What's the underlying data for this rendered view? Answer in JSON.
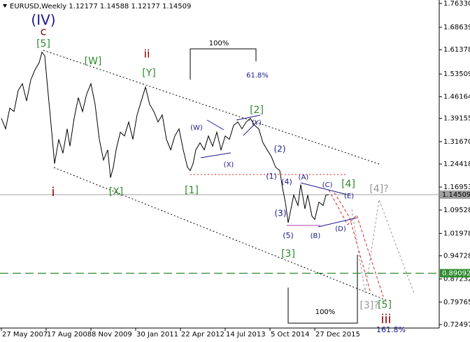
{
  "chart_data": {
    "type": "line",
    "title": "EURUSD,Weekly  1.12177 1.14588 1.12177 1.14509",
    "xlim": [
      -2,
      626
    ],
    "xticks": [
      {
        "value": 0,
        "label": "27 May 2007"
      },
      {
        "value": 64,
        "label": "17 Aug 2008"
      },
      {
        "value": 128,
        "label": "8 Nov 2009"
      },
      {
        "value": 192,
        "label": "30 Jan 2011"
      },
      {
        "value": 256,
        "label": "22 Apr 2012"
      },
      {
        "value": 320,
        "label": "14 Jul 2013"
      },
      {
        "value": 384,
        "label": "5 Oct 2014"
      },
      {
        "value": 448,
        "label": "27 Dec 2015"
      }
    ],
    "ylim": [
      0.7137,
      1.7746
    ],
    "yticks": [
      {
        "value": 1.7633,
        "label": "1.76330"
      },
      1.68639,
      1.61378,
      1.53509,
      1.46164,
      1.39155,
      {
        "value": 1.3167,
        "label": "1.31670"
      },
      1.24418,
      1.16953,
      1.09528,
      1.01978,
      0.94728,
      0.87232,
      0.79765,
      0.72497
    ],
    "hlines": [
      {
        "value": 1.14509,
        "label": "1.14509",
        "color": "#a0a0a0",
        "style": "solid"
      },
      {
        "value": 0.89092,
        "label": "0.89092",
        "color": "#2e8b2e",
        "style": "dashed"
      }
    ],
    "series": [
      {
        "name": "EURUSD",
        "color": "#000000",
        "x": [
          0,
          6,
          12,
          18,
          24,
          30,
          36,
          42,
          48,
          54,
          58,
          62,
          66,
          72,
          76,
          82,
          88,
          94,
          98,
          104,
          110,
          116,
          122,
          128,
          134,
          140,
          146,
          152,
          156,
          160,
          164,
          170,
          176,
          182,
          188,
          194,
          200,
          206,
          212,
          218,
          224,
          230,
          236,
          242,
          248,
          254,
          260,
          266,
          270,
          274,
          278,
          284,
          290,
          296,
          302,
          308,
          314,
          320,
          326,
          332,
          338,
          344,
          350,
          356,
          362,
          368,
          374,
          380,
          386,
          392,
          398,
          402,
          406,
          410,
          414,
          418,
          424,
          428,
          434,
          438,
          444,
          448,
          454,
          460,
          464,
          468
        ],
        "values": [
          1.392,
          1.358,
          1.425,
          1.414,
          1.482,
          1.504,
          1.448,
          1.516,
          1.549,
          1.572,
          1.606,
          1.594,
          1.493,
          1.347,
          1.245,
          1.324,
          1.279,
          1.358,
          1.302,
          1.392,
          1.459,
          1.414,
          1.471,
          1.504,
          1.437,
          1.324,
          1.257,
          1.29,
          1.2,
          1.234,
          1.29,
          1.347,
          1.335,
          1.38,
          1.324,
          1.403,
          1.448,
          1.493,
          1.437,
          1.414,
          1.38,
          1.403,
          1.324,
          1.29,
          1.335,
          1.358,
          1.29,
          1.234,
          1.223,
          1.245,
          1.29,
          1.313,
          1.29,
          1.335,
          1.302,
          1.347,
          1.29,
          1.335,
          1.324,
          1.369,
          1.38,
          1.358,
          1.38,
          1.392,
          1.369,
          1.358,
          1.313,
          1.29,
          1.268,
          1.234,
          1.223,
          1.166,
          1.121,
          1.054,
          1.099,
          1.144,
          1.11,
          1.178,
          1.099,
          1.144,
          1.076,
          1.065,
          1.121,
          1.11,
          1.144,
          1.14509
        ]
      }
    ],
    "annotations": [
      {
        "text": "(IV)",
        "color": "#1a1a8c"
      },
      {
        "text": "c",
        "color": "#8b0000"
      },
      {
        "text": "[5]",
        "color": "#2e8b2e"
      },
      {
        "text": "[W]",
        "color": "#2e8b2e"
      },
      {
        "text": "ii",
        "color": "#8b0000"
      },
      {
        "text": "[Y]",
        "color": "#2e8b2e"
      },
      {
        "text": "100%",
        "color": "#000000"
      },
      {
        "text": "61.8%",
        "color": "#1a1a8c"
      },
      {
        "text": "[2]",
        "color": "#2e8b2e"
      },
      {
        "text": "(Y)",
        "color": "#1a1a8c"
      },
      {
        "text": "(W)",
        "color": "#1a1a8c"
      },
      {
        "text": "(X)",
        "color": "#1a1a8c"
      },
      {
        "text": "(2)",
        "color": "#1a1a8c"
      },
      {
        "text": "i",
        "color": "#8b0000"
      },
      {
        "text": "[X]",
        "color": "#2e8b2e"
      },
      {
        "text": "[1]",
        "color": "#2e8b2e"
      },
      {
        "text": "(1)",
        "color": "#1a1a8c"
      },
      {
        "text": "(4)",
        "color": "#1a1a8c"
      },
      {
        "text": "(A)",
        "color": "#1a1a8c"
      },
      {
        "text": "(C)",
        "color": "#1a1a8c"
      },
      {
        "text": "[4]",
        "color": "#2e8b2e"
      },
      {
        "text": "[4]?",
        "color": "#999999"
      },
      {
        "text": "(E)",
        "color": "#1a1a8c"
      },
      {
        "text": "(3)",
        "color": "#1a1a8c"
      },
      {
        "text": "(D)",
        "color": "#1a1a8c"
      },
      {
        "text": "(5)",
        "color": "#1a1a8c"
      },
      {
        "text": "(B)",
        "color": "#1a1a8c"
      },
      {
        "text": "[3]",
        "color": "#2e8b2e"
      },
      {
        "text": "[3]?",
        "color": "#999999"
      },
      {
        "text": "[5]",
        "color": "#2e8b2e"
      },
      {
        "text": "iii",
        "color": "#8b0000"
      },
      {
        "text": "100%",
        "color": "#000000"
      },
      {
        "text": "161.8%",
        "color": "#1a1a8c"
      }
    ]
  }
}
